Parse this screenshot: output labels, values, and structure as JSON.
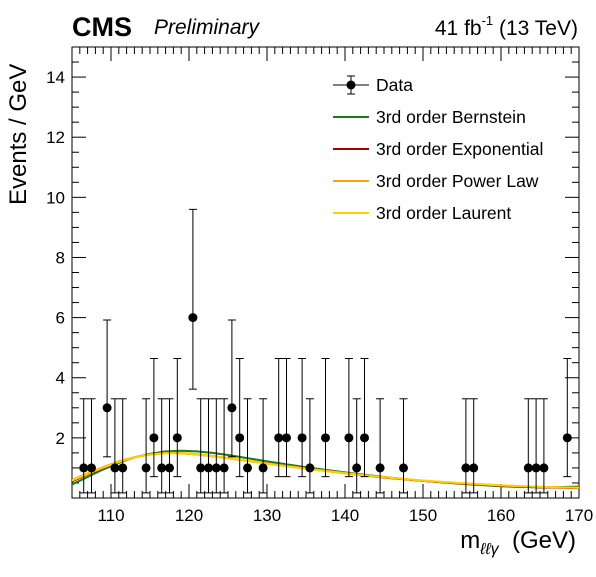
{
  "header": {
    "experiment": "CMS",
    "status": "Preliminary",
    "lumi": "41 fb",
    "lumi_exp": "-1",
    "energy": "(13 TeV)"
  },
  "axes": {
    "ylabel": "Events / GeV",
    "xlabel_base": "m",
    "xlabel_sub": "ℓℓγ",
    "xlabel_unit": "(GeV)"
  },
  "legend": {
    "data": "Data",
    "bernstein": "3rd order Bernstein",
    "exponential": "3rd order Exponential",
    "powerlaw": "3rd order Power Law",
    "laurent": "3rd order Laurent"
  },
  "colors": {
    "bernstein": "#1a7a1a",
    "exponential": "#a30000",
    "powerlaw": "#ff9c1a",
    "laurent": "#ffd000",
    "data": "#000000"
  },
  "chart_data": {
    "type": "scatter",
    "title": "",
    "xlabel": "m ℓℓγ (GeV)",
    "ylabel": "Events / GeV",
    "xlim": [
      105,
      170
    ],
    "ylim": [
      0,
      15
    ],
    "xticks": [
      110,
      120,
      130,
      140,
      150,
      160,
      170
    ],
    "yticks": [
      2,
      4,
      6,
      8,
      10,
      12,
      14
    ],
    "legend_position": "top-right",
    "grid": false,
    "data_points": [
      {
        "x": 106.5,
        "y": 1
      },
      {
        "x": 107.5,
        "y": 1
      },
      {
        "x": 109.5,
        "y": 3
      },
      {
        "x": 110.5,
        "y": 1
      },
      {
        "x": 111.5,
        "y": 1
      },
      {
        "x": 114.5,
        "y": 1
      },
      {
        "x": 115.5,
        "y": 2
      },
      {
        "x": 116.5,
        "y": 1
      },
      {
        "x": 117.5,
        "y": 1
      },
      {
        "x": 118.5,
        "y": 2
      },
      {
        "x": 120.5,
        "y": 6
      },
      {
        "x": 121.5,
        "y": 1
      },
      {
        "x": 122.5,
        "y": 1
      },
      {
        "x": 123.5,
        "y": 1
      },
      {
        "x": 124.5,
        "y": 1
      },
      {
        "x": 125.5,
        "y": 3
      },
      {
        "x": 126.5,
        "y": 2
      },
      {
        "x": 127.5,
        "y": 1
      },
      {
        "x": 129.5,
        "y": 1
      },
      {
        "x": 131.5,
        "y": 2
      },
      {
        "x": 132.5,
        "y": 2
      },
      {
        "x": 134.5,
        "y": 2
      },
      {
        "x": 135.5,
        "y": 1
      },
      {
        "x": 137.5,
        "y": 2
      },
      {
        "x": 140.5,
        "y": 2
      },
      {
        "x": 141.5,
        "y": 1
      },
      {
        "x": 142.5,
        "y": 2
      },
      {
        "x": 144.5,
        "y": 1
      },
      {
        "x": 147.5,
        "y": 1
      },
      {
        "x": 155.5,
        "y": 1
      },
      {
        "x": 156.5,
        "y": 1
      },
      {
        "x": 163.5,
        "y": 1
      },
      {
        "x": 164.5,
        "y": 1
      },
      {
        "x": 165.5,
        "y": 1
      },
      {
        "x": 168.5,
        "y": 2
      }
    ],
    "error_bars": {
      "1": [
        0.83,
        2.3
      ],
      "2": [
        1.29,
        2.64
      ],
      "3": [
        1.63,
        2.92
      ],
      "6": [
        2.38,
        3.6
      ]
    },
    "series": [
      {
        "name": "3rd order Bernstein",
        "color": "#1a7a1a",
        "x": [
          105,
          107,
          109,
          111,
          113,
          115,
          117,
          119,
          121,
          123,
          125,
          130,
          135,
          140,
          145,
          150,
          155,
          160,
          165,
          170
        ],
        "y": [
          0.45,
          0.7,
          0.95,
          1.17,
          1.35,
          1.47,
          1.55,
          1.57,
          1.55,
          1.5,
          1.43,
          1.22,
          1.02,
          0.85,
          0.7,
          0.57,
          0.47,
          0.39,
          0.35,
          0.38
        ]
      },
      {
        "name": "3rd order Exponential",
        "color": "#a30000",
        "x": [
          105,
          107,
          109,
          111,
          113,
          115,
          117,
          119,
          121,
          123,
          125,
          130,
          135,
          140,
          145,
          150,
          155,
          160,
          165,
          170
        ],
        "y": [
          0.55,
          0.78,
          1.0,
          1.2,
          1.35,
          1.45,
          1.5,
          1.49,
          1.45,
          1.39,
          1.32,
          1.15,
          0.98,
          0.82,
          0.68,
          0.57,
          0.48,
          0.41,
          0.36,
          0.33
        ]
      },
      {
        "name": "3rd order Power Law",
        "color": "#ff9c1a",
        "x": [
          105,
          107,
          109,
          111,
          113,
          115,
          117,
          119,
          121,
          123,
          125,
          130,
          135,
          140,
          145,
          150,
          155,
          160,
          165,
          170
        ],
        "y": [
          0.6,
          0.82,
          1.03,
          1.22,
          1.36,
          1.45,
          1.5,
          1.5,
          1.46,
          1.4,
          1.33,
          1.15,
          0.98,
          0.83,
          0.69,
          0.58,
          0.49,
          0.42,
          0.37,
          0.34
        ]
      },
      {
        "name": "3rd order Laurent",
        "color": "#ffd000",
        "x": [
          105,
          107,
          109,
          111,
          113,
          115,
          117,
          119,
          121,
          123,
          125,
          130,
          135,
          140,
          145,
          150,
          155,
          160,
          165,
          170
        ],
        "y": [
          0.58,
          0.8,
          1.01,
          1.2,
          1.35,
          1.44,
          1.49,
          1.49,
          1.45,
          1.39,
          1.32,
          1.14,
          0.97,
          0.82,
          0.69,
          0.58,
          0.49,
          0.42,
          0.37,
          0.34
        ]
      }
    ]
  }
}
